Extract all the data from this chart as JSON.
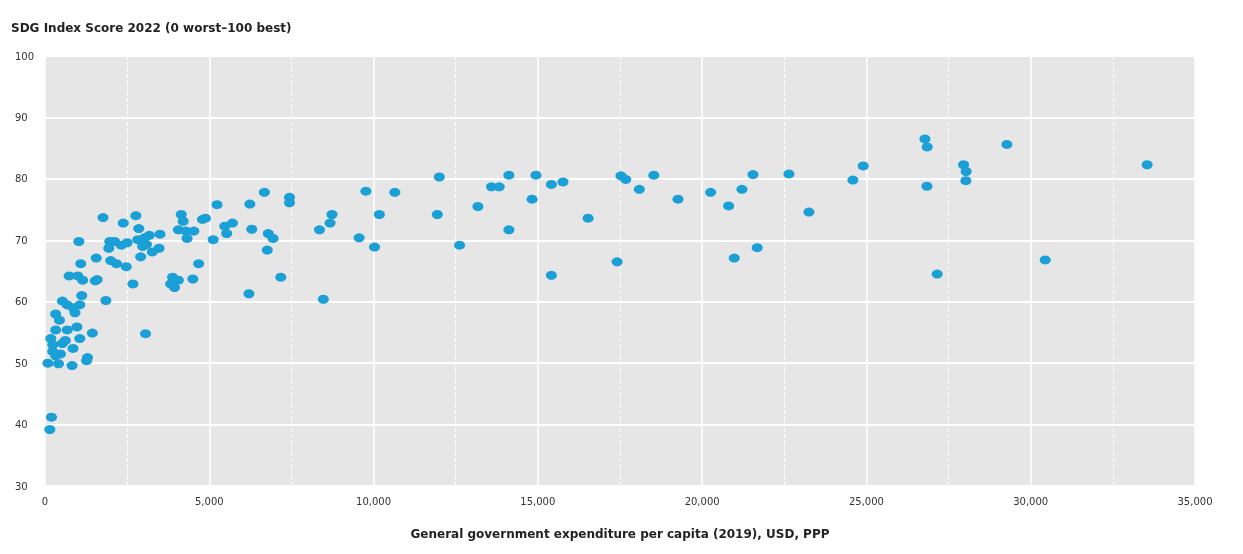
{
  "chart_data": {
    "type": "scatter",
    "ylabel": "SDG Index Score 2022 (0 worst–100 best)",
    "xlabel": "General government expenditure per capita (2019), USD, PPP",
    "x": [
      197,
      147,
      1765,
      2765,
      2382,
      2853,
      1029,
      1970,
      1941,
      2118,
      2324,
      2500,
      2824,
      3029,
      3176,
      3088,
      2971,
      3471,
      3265,
      2912,
      3500,
      1559,
      2000,
      2176,
      2471,
      1088,
      735,
      1000,
      1147,
      1529,
      1588,
      2676,
      3882,
      3824,
      3941,
      4059,
      4500,
      4676,
      1118,
      1853,
      529,
      676,
      853,
      1059,
      912,
      324,
      441,
      176,
      324,
      676,
      971,
      1441,
      1059,
      3059,
      235,
      529,
      853,
      235,
      471,
      324,
      618,
      88,
      412,
      824,
      1294,
      1265,
      4147,
      4206,
      4059,
      4294,
      4529,
      4324,
      4794,
      4882,
      5235,
      5118,
      5471,
      5706,
      5529,
      6235,
      6676,
      6294,
      6794,
      6941,
      6765,
      7176,
      6206,
      7441,
      7441,
      8353,
      8676,
      8735,
      8471,
      9559,
      9765,
      10029,
      10176,
      10647,
      12000,
      11941,
      12618,
      13176,
      13588,
      13824,
      14118,
      14118,
      14941,
      14824,
      15412,
      15765,
      15412,
      16529,
      17412,
      17529,
      17676,
      18088,
      18529,
      19265,
      20259,
      20806,
      21212,
      21547,
      20976,
      21676,
      22641,
      23250,
      24588,
      24903,
      26780,
      26850,
      26841,
      27153,
      27956,
      28035,
      28026,
      29274,
      30441,
      33544
    ],
    "series": [
      {
        "color": "#1a9fd6",
        "values": [
          41.2,
          39.2,
          73.7,
          74.0,
          72.8,
          71.9,
          69.8,
          69.8,
          68.7,
          69.8,
          69.2,
          69.6,
          70.1,
          70.4,
          70.8,
          69.3,
          69.0,
          68.7,
          68.1,
          67.3,
          71.0,
          67.1,
          66.7,
          66.2,
          65.7,
          66.2,
          64.2,
          64.2,
          63.5,
          63.4,
          63.6,
          62.9,
          64.0,
          62.9,
          62.3,
          63.5,
          63.7,
          66.2,
          61.0,
          60.2,
          60.1,
          59.5,
          59.0,
          59.5,
          58.2,
          58.0,
          57.0,
          54.0,
          55.4,
          55.4,
          55.9,
          54.9,
          54.0,
          54.8,
          53.0,
          53.2,
          52.4,
          51.9,
          51.5,
          51.2,
          53.7,
          50.0,
          49.9,
          49.6,
          50.9,
          50.4,
          74.2,
          73.1,
          71.7,
          71.5,
          71.5,
          70.3,
          73.4,
          73.6,
          75.8,
          70.1,
          72.3,
          72.8,
          71.1,
          75.9,
          77.8,
          71.8,
          71.1,
          70.3,
          68.4,
          64.0,
          61.3,
          77.0,
          76.1,
          71.7,
          72.8,
          74.2,
          60.4,
          70.4,
          78.0,
          68.9,
          74.2,
          77.8,
          80.3,
          74.2,
          69.2,
          75.5,
          78.7,
          78.7,
          80.6,
          71.7,
          80.6,
          76.7,
          79.1,
          79.5,
          64.3,
          73.6,
          66.5,
          80.5,
          79.9,
          78.3,
          80.6,
          76.7,
          77.8,
          75.6,
          78.3,
          80.7,
          67.1,
          68.8,
          80.8,
          74.6,
          79.8,
          82.1,
          86.5,
          85.2,
          78.8,
          64.5,
          82.3,
          81.2,
          79.7,
          85.6,
          66.8,
          82.3
        ]
      }
    ],
    "xlim": [
      0,
      35000
    ],
    "xticks": [
      0,
      {
        "value": 2500,
        "label": null
      },
      {
        "value": 5000,
        "label": "5,000"
      },
      {
        "value": 7500,
        "label": null
      },
      {
        "value": 10000,
        "label": "10,000"
      },
      {
        "value": 12500,
        "label": null
      },
      {
        "value": 15000,
        "label": "15,000"
      },
      {
        "value": 17500,
        "label": null
      },
      {
        "value": 20000,
        "label": "20,000"
      },
      {
        "value": 22500,
        "label": null
      },
      {
        "value": 25000,
        "label": "25,000"
      },
      {
        "value": 27500,
        "label": null
      },
      {
        "value": 30000,
        "label": "30,000"
      },
      {
        "value": 32500,
        "label": null
      },
      {
        "value": 35000,
        "label": "35,000"
      }
    ],
    "ylim": [
      30,
      100
    ],
    "yticks": [
      30,
      40,
      50,
      60,
      70,
      80,
      90,
      100
    ],
    "grid": true,
    "marker": "circle"
  }
}
